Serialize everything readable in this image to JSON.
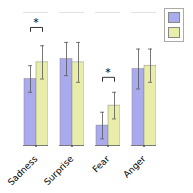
{
  "chart_data": {
    "type": "bar",
    "categories": [
      "Sadness",
      "Surprise",
      "Fear",
      "Anger"
    ],
    "series": [
      {
        "color": "#aaaaee",
        "values": [
          0.62,
          0.68,
          0.48,
          0.65
        ],
        "errors": [
          0.04,
          0.05,
          0.04,
          0.06
        ]
      },
      {
        "color": "#e8eeaa",
        "values": [
          0.67,
          0.67,
          0.54,
          0.66
        ],
        "errors": [
          0.05,
          0.06,
          0.04,
          0.05
        ]
      }
    ],
    "ylim": [
      0.42,
      0.82
    ],
    "tick_labels": "x",
    "legend": "upper right",
    "annotations": [
      {
        "category": "Sadness",
        "y": 0.775,
        "text": "*"
      },
      {
        "category": "Fear",
        "y": 0.625,
        "text": "*"
      }
    ]
  }
}
